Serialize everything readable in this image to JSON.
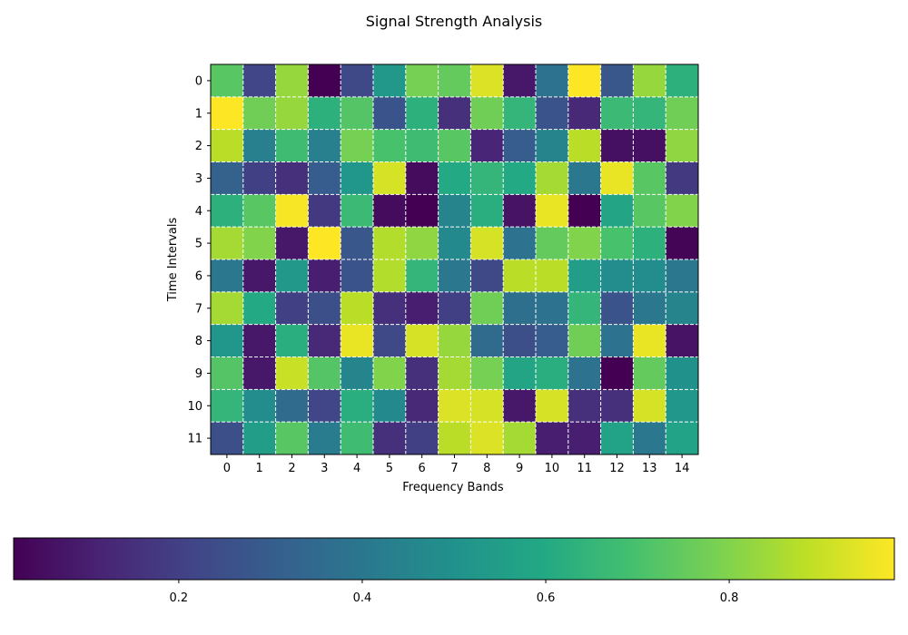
{
  "chart_data": {
    "type": "heatmap",
    "title": "Signal Strength Analysis",
    "xlabel": "Frequency Bands",
    "ylabel": "Time Intervals",
    "x_categories": [
      "0",
      "1",
      "2",
      "3",
      "4",
      "5",
      "6",
      "7",
      "8",
      "9",
      "10",
      "11",
      "12",
      "13",
      "14"
    ],
    "y_categories": [
      "0",
      "1",
      "2",
      "3",
      "4",
      "5",
      "6",
      "7",
      "8",
      "9",
      "10",
      "11"
    ],
    "values": [
      [
        0.73,
        0.22,
        0.83,
        0.02,
        0.23,
        0.53,
        0.78,
        0.75,
        0.93,
        0.08,
        0.38,
        0.98,
        0.28,
        0.83,
        0.63
      ],
      [
        0.98,
        0.77,
        0.83,
        0.63,
        0.72,
        0.27,
        0.63,
        0.15,
        0.77,
        0.65,
        0.27,
        0.13,
        0.67,
        0.65,
        0.77
      ],
      [
        0.88,
        0.43,
        0.68,
        0.43,
        0.78,
        0.7,
        0.68,
        0.73,
        0.12,
        0.3,
        0.45,
        0.88,
        0.06,
        0.06,
        0.82
      ],
      [
        0.32,
        0.2,
        0.15,
        0.3,
        0.52,
        0.92,
        0.05,
        0.6,
        0.65,
        0.6,
        0.85,
        0.4,
        0.95,
        0.73,
        0.18
      ],
      [
        0.63,
        0.73,
        0.97,
        0.18,
        0.67,
        0.05,
        0.02,
        0.45,
        0.62,
        0.07,
        0.95,
        0.02,
        0.58,
        0.73,
        0.8
      ],
      [
        0.85,
        0.8,
        0.08,
        0.98,
        0.28,
        0.87,
        0.82,
        0.47,
        0.92,
        0.38,
        0.75,
        0.8,
        0.7,
        0.63,
        0.03
      ],
      [
        0.4,
        0.08,
        0.53,
        0.1,
        0.27,
        0.87,
        0.65,
        0.4,
        0.23,
        0.88,
        0.88,
        0.55,
        0.48,
        0.48,
        0.4
      ],
      [
        0.85,
        0.6,
        0.2,
        0.25,
        0.88,
        0.15,
        0.1,
        0.2,
        0.77,
        0.37,
        0.38,
        0.65,
        0.27,
        0.4,
        0.45
      ],
      [
        0.52,
        0.08,
        0.62,
        0.13,
        0.95,
        0.23,
        0.92,
        0.83,
        0.35,
        0.25,
        0.3,
        0.77,
        0.38,
        0.95,
        0.07
      ],
      [
        0.72,
        0.08,
        0.9,
        0.72,
        0.45,
        0.8,
        0.15,
        0.85,
        0.78,
        0.58,
        0.62,
        0.38,
        0.02,
        0.75,
        0.5
      ],
      [
        0.65,
        0.48,
        0.35,
        0.22,
        0.62,
        0.47,
        0.13,
        0.93,
        0.92,
        0.08,
        0.92,
        0.15,
        0.15,
        0.92,
        0.52
      ],
      [
        0.25,
        0.55,
        0.73,
        0.42,
        0.68,
        0.15,
        0.2,
        0.88,
        0.93,
        0.85,
        0.1,
        0.1,
        0.57,
        0.4,
        0.57
      ]
    ],
    "colormap": "viridis",
    "color_range": [
      0.02,
      0.98
    ],
    "colorbar": {
      "orientation": "horizontal",
      "position": "bottom",
      "ticks": [
        0.2,
        0.4,
        0.6,
        0.8
      ],
      "tick_labels": [
        "0.2",
        "0.4",
        "0.6",
        "0.8"
      ]
    },
    "grid": true,
    "grid_color": "#ffffff",
    "grid_style": "dashed"
  }
}
